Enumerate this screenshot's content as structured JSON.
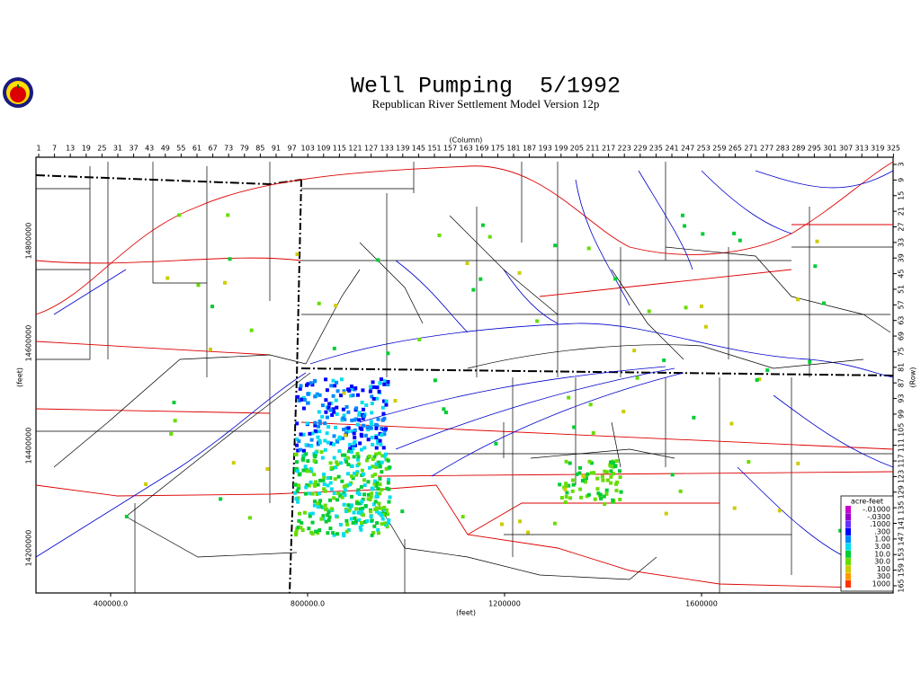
{
  "header": {
    "title": "Well Pumping  5/1992",
    "subtitle": "Republican River Settlement Model Version 12p"
  },
  "axes": {
    "column_label": "(Column)",
    "columns": [
      1,
      7,
      13,
      19,
      25,
      31,
      37,
      43,
      49,
      55,
      61,
      67,
      73,
      79,
      85,
      91,
      97,
      103,
      109,
      115,
      121,
      127,
      133,
      139,
      145,
      151,
      157,
      163,
      169,
      175,
      181,
      187,
      193,
      199,
      205,
      211,
      217,
      223,
      229,
      235,
      241,
      247,
      253,
      259,
      265,
      271,
      277,
      283,
      289,
      295,
      301,
      307,
      313,
      319,
      325
    ],
    "row_label": "(Row)",
    "rows": [
      3,
      9,
      15,
      21,
      27,
      33,
      39,
      45,
      51,
      57,
      63,
      69,
      75,
      81,
      87,
      93,
      99,
      105,
      111,
      117,
      123,
      129,
      135,
      141,
      147,
      153,
      159,
      165
    ],
    "x_label": "(feet)",
    "x_ticks": [
      "400000.0",
      "800000.0",
      "1200000",
      "1600000"
    ],
    "y_label": "(feet)",
    "y_ticks": [
      "14800000",
      "14600000",
      "14400000",
      "14200000"
    ]
  },
  "legend": {
    "title": "acre-feet",
    "entries": [
      {
        "label": "-.01000",
        "color": "#cc00cc"
      },
      {
        "label": "-.0300",
        "color": "#9900cc"
      },
      {
        "label": ".1000",
        "color": "#6633ff"
      },
      {
        "label": ".300",
        "color": "#0000ff"
      },
      {
        "label": "1.00",
        "color": "#0088ff"
      },
      {
        "label": "3.00",
        "color": "#00ddee"
      },
      {
        "label": "10.0",
        "color": "#00cc33"
      },
      {
        "label": "30.0",
        "color": "#66dd00"
      },
      {
        "label": "100",
        "color": "#cccc00"
      },
      {
        "label": "300",
        "color": "#ff9900"
      },
      {
        "label": "1000",
        "color": "#ff3300"
      }
    ]
  }
}
